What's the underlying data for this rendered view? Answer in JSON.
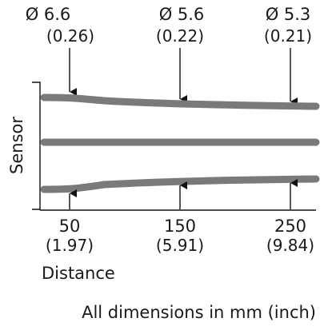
{
  "diameters": [
    {
      "label": "Ø 6.6",
      "inch": "(0.26)"
    },
    {
      "label": "Ø 5.6",
      "inch": "(0.22)"
    },
    {
      "label": "Ø 5.3",
      "inch": "(0.21)"
    }
  ],
  "distances": [
    {
      "mm": "50",
      "inch": "(1.97)"
    },
    {
      "mm": "150",
      "inch": "(5.91)"
    },
    {
      "mm": "250",
      "inch": "(9.84)"
    }
  ],
  "sensor_label": "Sensor",
  "axis_label": "Distance",
  "footnote": "All dimensions in mm (inch)",
  "colors": {
    "beam": "#7a7a7a",
    "text": "#1a1a1a",
    "line": "#111111"
  }
}
